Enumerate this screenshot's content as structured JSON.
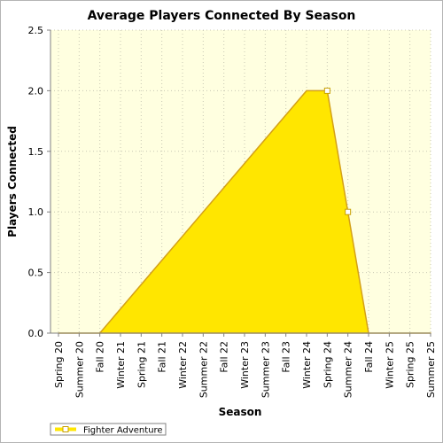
{
  "chart_data": {
    "type": "area",
    "title": "Average Players Connected By Season",
    "xlabel": "Season",
    "ylabel": "Players Connected",
    "ylim": [
      0,
      2.5
    ],
    "y_ticks": [
      "0.0",
      "0.5",
      "1.0",
      "1.5",
      "2.0",
      "2.5"
    ],
    "y_tick_values": [
      0,
      0.5,
      1.0,
      1.5,
      2.0,
      2.5
    ],
    "categories": [
      "Spring 20",
      "Summer 20",
      "Fall 20",
      "Winter 21",
      "Spring 21",
      "Fall 21",
      "Winter 22",
      "Summer 22",
      "Fall 22",
      "Winter 23",
      "Summer 23",
      "Fall 23",
      "Winter 24",
      "Spring 24",
      "Summer 24",
      "Fall 24",
      "Winter 25",
      "Spring 25",
      "Summer 25"
    ],
    "series": [
      {
        "name": "Fighter Adventure",
        "values": [
          0,
          0,
          0,
          0.2,
          0.4,
          0.6,
          0.8,
          1.0,
          1.2,
          1.4,
          1.6,
          1.8,
          2.0,
          2.0,
          1.0,
          0,
          0,
          0,
          0
        ],
        "color": "#ffe600"
      }
    ],
    "markers_at": [
      13,
      14
    ],
    "grid": true,
    "legend": "bottom-left",
    "plot_background": "#ffffe0"
  }
}
